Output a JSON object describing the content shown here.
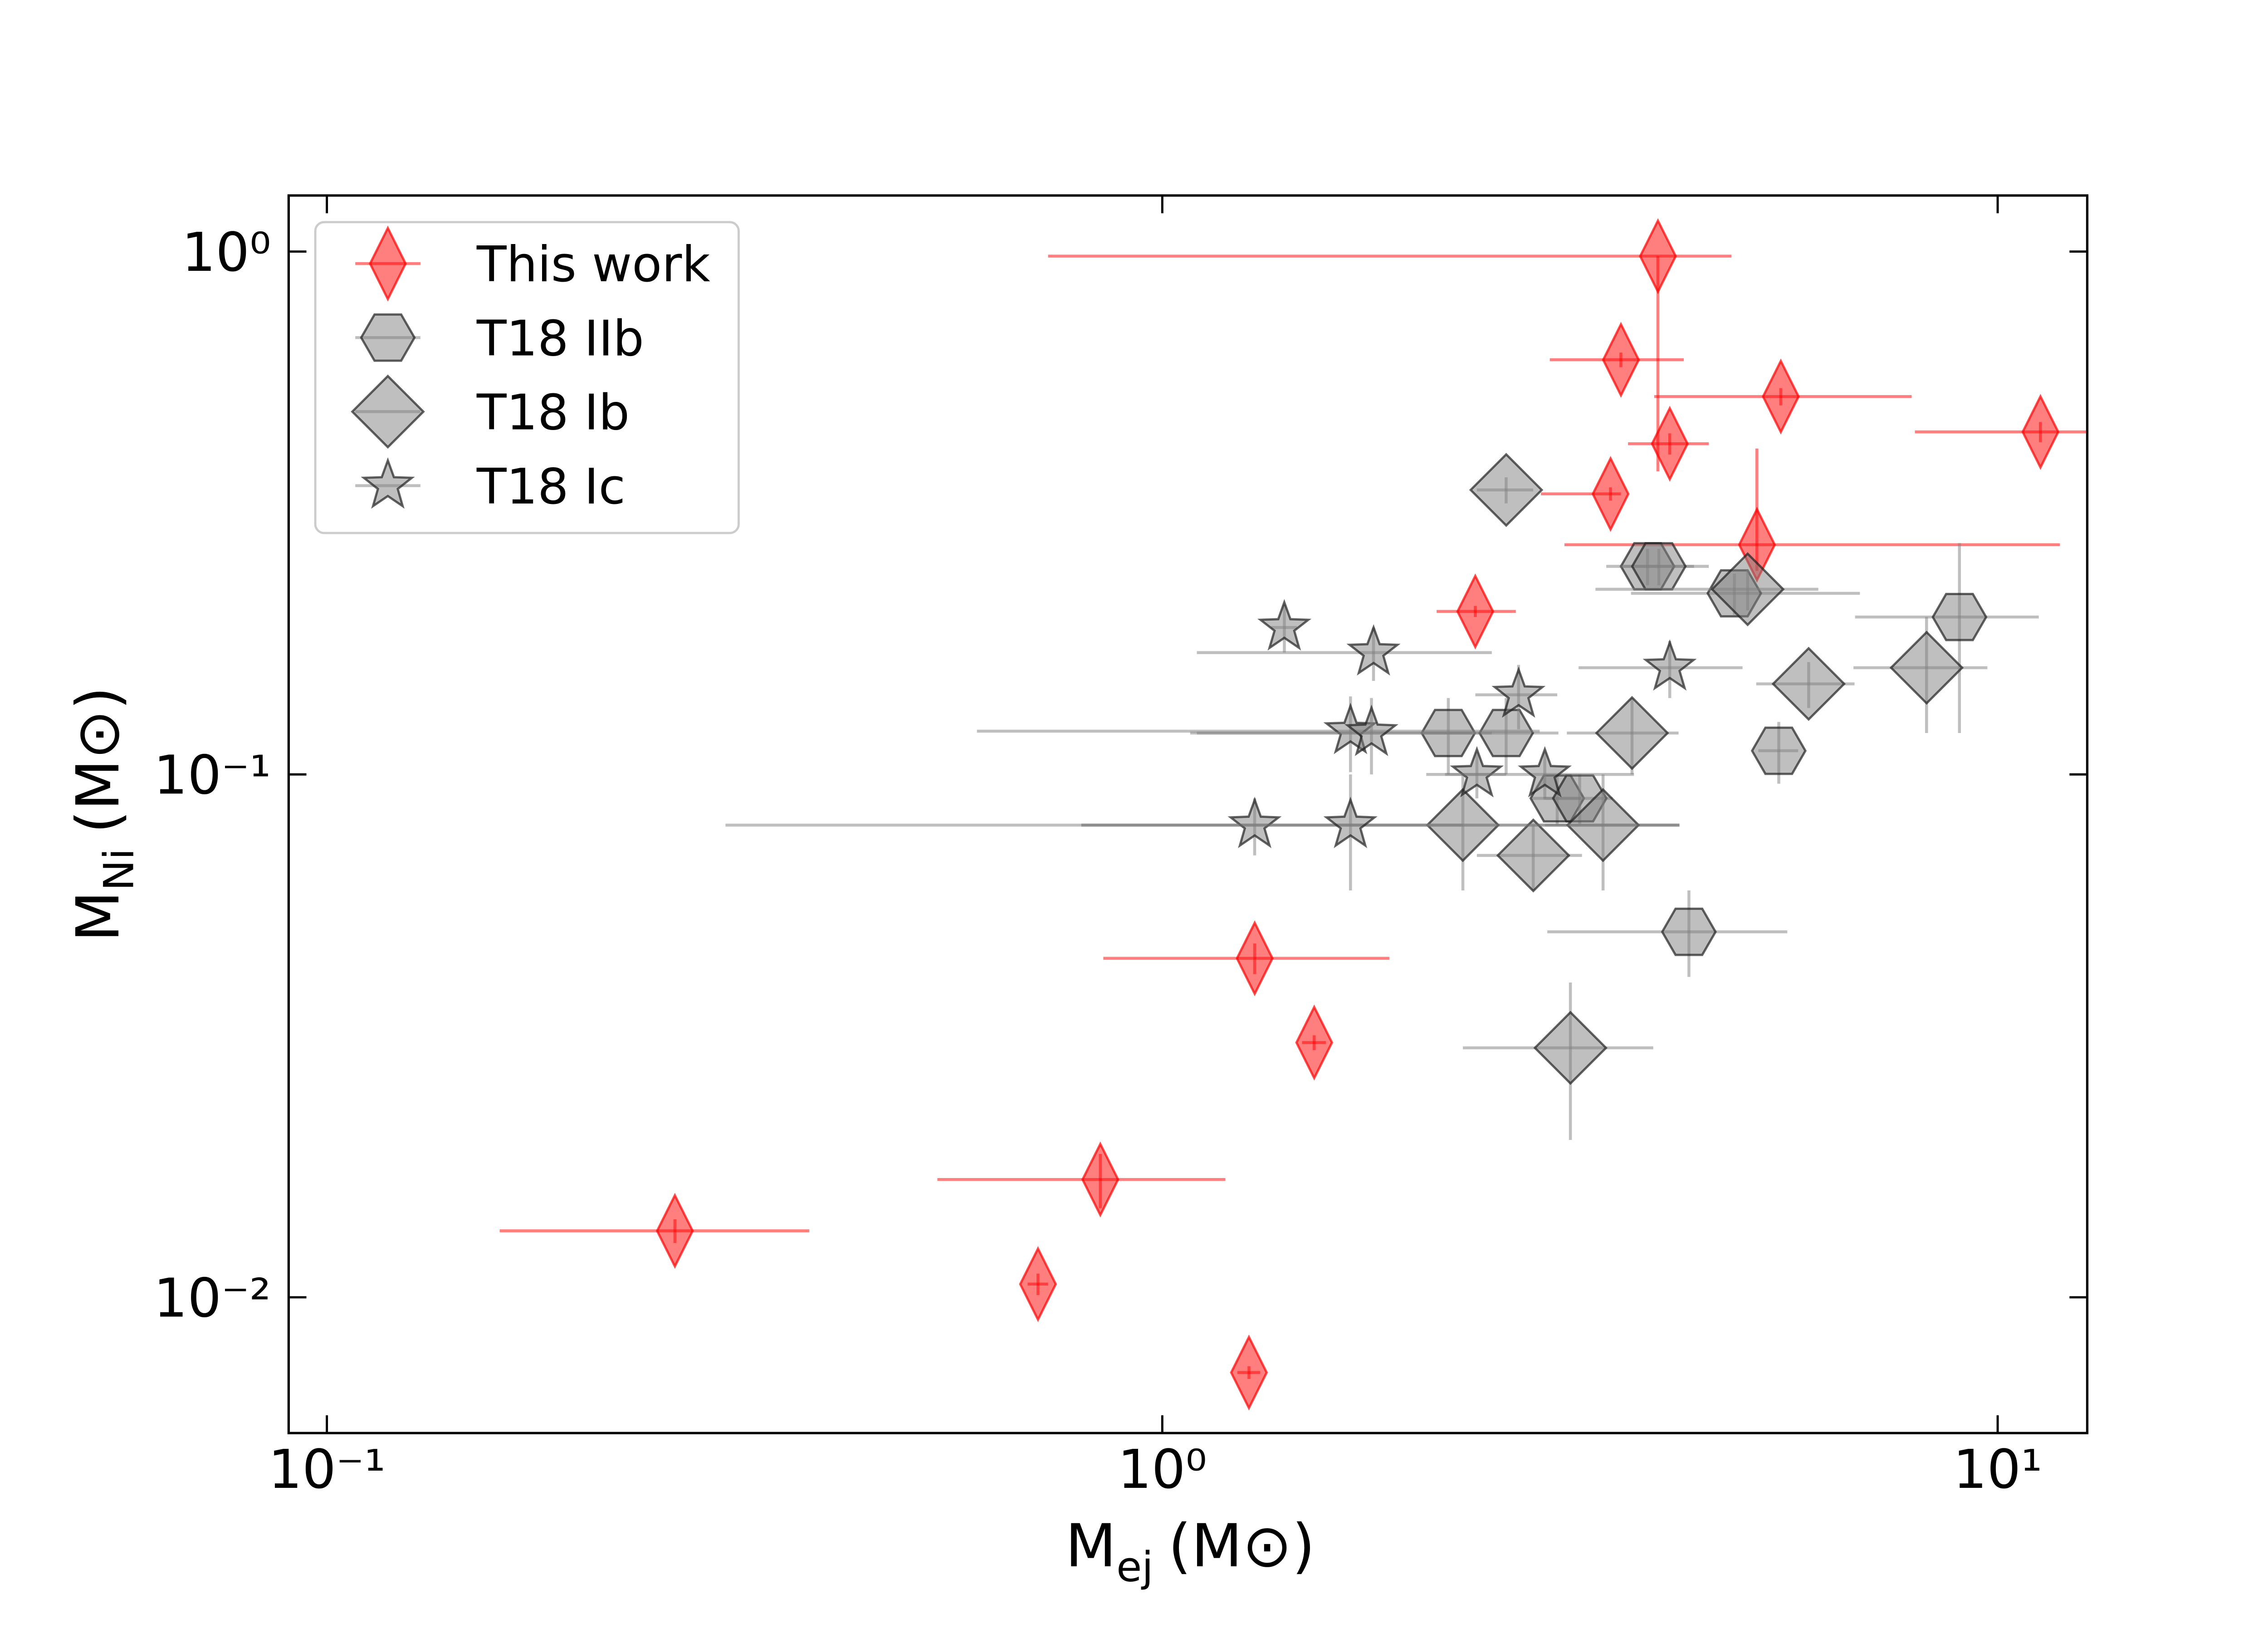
{
  "chart_data": {
    "type": "scatter",
    "xlabel": {
      "symbol": "M",
      "subscript": "ej",
      "unit": "(M⊙)"
    },
    "ylabel": {
      "symbol": "M",
      "subscript": "Ni",
      "unit": "(M⊙)"
    },
    "xscale": "log",
    "yscale": "log",
    "xlim": [
      0.09,
      12.8
    ],
    "ylim": [
      0.0055,
      1.28
    ],
    "xticks": [
      {
        "value": 0.1,
        "label": "10⁻¹"
      },
      {
        "value": 1,
        "label": "10⁰"
      },
      {
        "value": 10,
        "label": "10¹"
      }
    ],
    "yticks": [
      {
        "value": 0.01,
        "label": "10⁻²"
      },
      {
        "value": 0.1,
        "label": "10⁻¹"
      },
      {
        "value": 1,
        "label": "10⁰"
      }
    ],
    "legend": "upper left",
    "series": [
      {
        "name": "This work",
        "marker": "thin_diamond",
        "color": "#ff0000",
        "edgecolor": "#ff0000",
        "alpha": 0.5,
        "x": [
          3.92,
          3.54,
          5.5,
          11.25,
          4.05,
          3.44,
          5.15,
          2.37,
          1.29,
          1.52,
          0.843,
          0.261,
          0.71,
          1.27
        ],
        "y": [
          0.98,
          0.621,
          0.528,
          0.452,
          0.429,
          0.344,
          0.275,
          0.205,
          0.0445,
          0.0307,
          0.0168,
          0.0134,
          0.0106,
          0.00718
        ],
        "xerr": [
          [
            3.19,
            0.88
          ],
          [
            0.63,
            0.67
          ],
          [
            1.62,
            2.39
          ],
          [
            3.29,
            3.0
          ],
          [
            0.44,
            0.46
          ],
          [
            0.6,
            0.1
          ],
          [
            2.12,
            6.72
          ],
          [
            0.24,
            0.28
          ],
          [
            0.44,
            0.58
          ],
          [
            0.05,
            0.05
          ],
          [
            0.305,
            0.347
          ],
          [
            0.1,
            0.117
          ],
          [
            0.02,
            0.02
          ],
          [
            0.04,
            0.04
          ]
        ],
        "yerr": [
          [
            0.6,
            0
          ],
          [
            0.02,
            0.02
          ],
          [
            0.02,
            0.02
          ],
          [
            0.02,
            0.02
          ],
          [
            0.02,
            0.02
          ],
          [
            0.01,
            0.01
          ],
          [
            0.03,
            0.145
          ],
          [
            0.005,
            0.005
          ],
          [
            0.003,
            0.003
          ],
          [
            0.001,
            0.001
          ],
          [
            0.002,
            0.002
          ],
          [
            0.0007,
            0.0007
          ],
          [
            0.0005,
            0.0005
          ],
          [
            0.0002,
            0.0002
          ]
        ]
      },
      {
        "name": "T18 IIb",
        "marker": "hexagon",
        "color": "#808080",
        "edgecolor": "#202020",
        "alpha": 0.5,
        "x": [
          3.81,
          3.93,
          4.84,
          9.0,
          2.2,
          2.58,
          2.97,
          3.16,
          5.47,
          4.27
        ],
        "y": [
          0.25,
          0.25,
          0.222,
          0.2,
          0.12,
          0.12,
          0.09,
          0.09,
          0.111,
          0.05
        ],
        "xerr": [
          [
            0.41,
            0.7
          ],
          [
            0.4,
            0.4
          ],
          [
            1.2,
            2.0
          ],
          [
            2.25,
            2.2
          ],
          [
            0.15,
            0.15
          ],
          [
            1.48,
            0.4
          ],
          [
            0.2,
            0.2
          ],
          [
            0.3,
            0.3
          ],
          [
            0.3,
            0.3
          ],
          [
            1.38,
            1.33
          ]
        ],
        "yerr": [
          [
            0.02,
            0.02
          ],
          [
            0.02,
            0.02
          ],
          [
            0.02,
            0.02
          ],
          [
            0.08,
            0.077
          ],
          [
            0.02,
            0.02
          ],
          [
            0.02,
            0.02
          ],
          [
            0.01,
            0.01
          ],
          [
            0.01,
            0.01
          ],
          [
            0.015,
            0.015
          ],
          [
            0.009,
            0.01
          ]
        ]
      },
      {
        "name": "T18 Ib",
        "marker": "diamond",
        "color": "#808080",
        "edgecolor": "#202020",
        "alpha": 0.5,
        "x": [
          2.58,
          5.02,
          5.94,
          8.22,
          3.65,
          2.29,
          3.37,
          2.78,
          3.08
        ],
        "y": [
          0.35,
          0.226,
          0.149,
          0.16,
          0.12,
          0.08,
          0.08,
          0.07,
          0.03
        ],
        "xerr": [
          [
            0.2,
            0.2
          ],
          [
            1.72,
            1.08
          ],
          [
            0.8,
            0.8
          ],
          [
            1.5,
            1.5
          ],
          [
            0.6,
            0.5
          ],
          [
            1.49,
            1.87
          ],
          [
            0.5,
            0.79
          ],
          [
            0.4,
            0.4
          ],
          [
            0.79,
            0.79
          ]
        ],
        "yerr": [
          [
            0.02,
            0.02
          ],
          [
            0.02,
            0.02
          ],
          [
            0.015,
            0.015
          ],
          [
            0.04,
            0.04
          ],
          [
            0.02,
            0.02
          ],
          [
            0.02,
            0.02
          ],
          [
            0.02,
            0.02
          ],
          [
            0.01,
            0.01
          ],
          [
            0.01,
            0.01
          ]
        ]
      },
      {
        "name": "T18 Ic",
        "marker": "star",
        "color": "#808080",
        "edgecolor": "#202020",
        "alpha": 0.5,
        "x": [
          1.4,
          1.79,
          4.05,
          2.67,
          1.68,
          1.78,
          2.38,
          2.87,
          1.29,
          1.68
        ],
        "y": [
          0.191,
          0.171,
          0.16,
          0.142,
          0.121,
          0.12,
          0.1,
          0.1,
          0.08,
          0.08
        ],
        "xerr": [
          [
            0.05,
            0.05
          ],
          [
            0.69,
            0.69
          ],
          [
            0.9,
            0.9
          ],
          [
            0.3,
            0.3
          ],
          [
            1.08,
            1.15
          ],
          [
            0.7,
            0.7
          ],
          [
            0.2,
            0.2
          ],
          [
            0.8,
            0.8
          ],
          [
            0.99,
            1.0
          ],
          [
            0.88,
            2.48
          ]
        ],
        "yerr": [
          [
            0.02,
            0.02
          ],
          [
            0.02,
            0.02
          ],
          [
            0.02,
            0.02
          ],
          [
            0.02,
            0.02
          ],
          [
            0.02,
            0.02
          ],
          [
            0.02,
            0.02
          ],
          [
            0.01,
            0.01
          ],
          [
            0.01,
            0.01
          ],
          [
            0.01,
            0.01
          ],
          [
            0.02,
            0.02
          ]
        ]
      }
    ]
  }
}
